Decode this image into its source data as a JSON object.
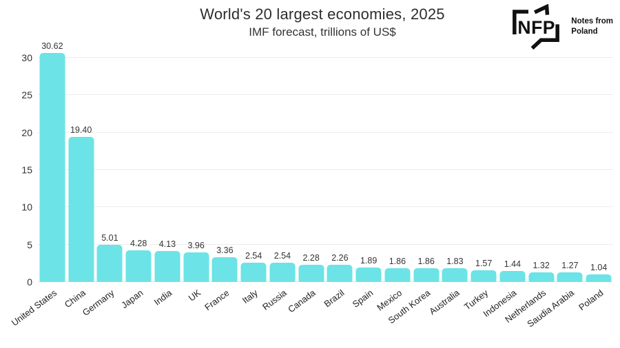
{
  "header": {
    "title": "World's 20 largest economies, 2025",
    "subtitle": "IMF forecast, trillions of US$"
  },
  "logo": {
    "abbr": "NFP",
    "line1": "Notes from",
    "line2": "Poland"
  },
  "chart_data": {
    "type": "bar",
    "title": "World's 20 largest economies, 2025",
    "subtitle": "IMF forecast, trillions of US$",
    "categories": [
      "United States",
      "China",
      "Germany",
      "Japan",
      "India",
      "UK",
      "France",
      "Italy",
      "Russia",
      "Canada",
      "Brazil",
      "Spain",
      "Mexico",
      "South Korea",
      "Australia",
      "Turkey",
      "Indonesia",
      "Netherlands",
      "Saudia Arabia",
      "Poland"
    ],
    "values": [
      30.62,
      19.4,
      5.01,
      4.28,
      4.13,
      3.96,
      3.36,
      2.54,
      2.54,
      2.28,
      2.26,
      1.89,
      1.86,
      1.86,
      1.83,
      1.57,
      1.44,
      1.32,
      1.27,
      1.04
    ],
    "value_labels": [
      "30.62",
      "19.40",
      "5.01",
      "4.28",
      "4.13",
      "3.96",
      "3.36",
      "2.54",
      "2.54",
      "2.28",
      "2.26",
      "1.89",
      "1.86",
      "1.86",
      "1.83",
      "1.57",
      "1.44",
      "1.32",
      "1.27",
      "1.04"
    ],
    "xlabel": "",
    "ylabel": "",
    "ylim": [
      0,
      30
    ],
    "yticks": [
      0,
      5,
      10,
      15,
      20,
      25,
      30
    ],
    "grid": "horizontal",
    "legend": "none",
    "bar_color": "#6CE3E6",
    "grid_color": "#ececec",
    "text_color": "#333333"
  }
}
